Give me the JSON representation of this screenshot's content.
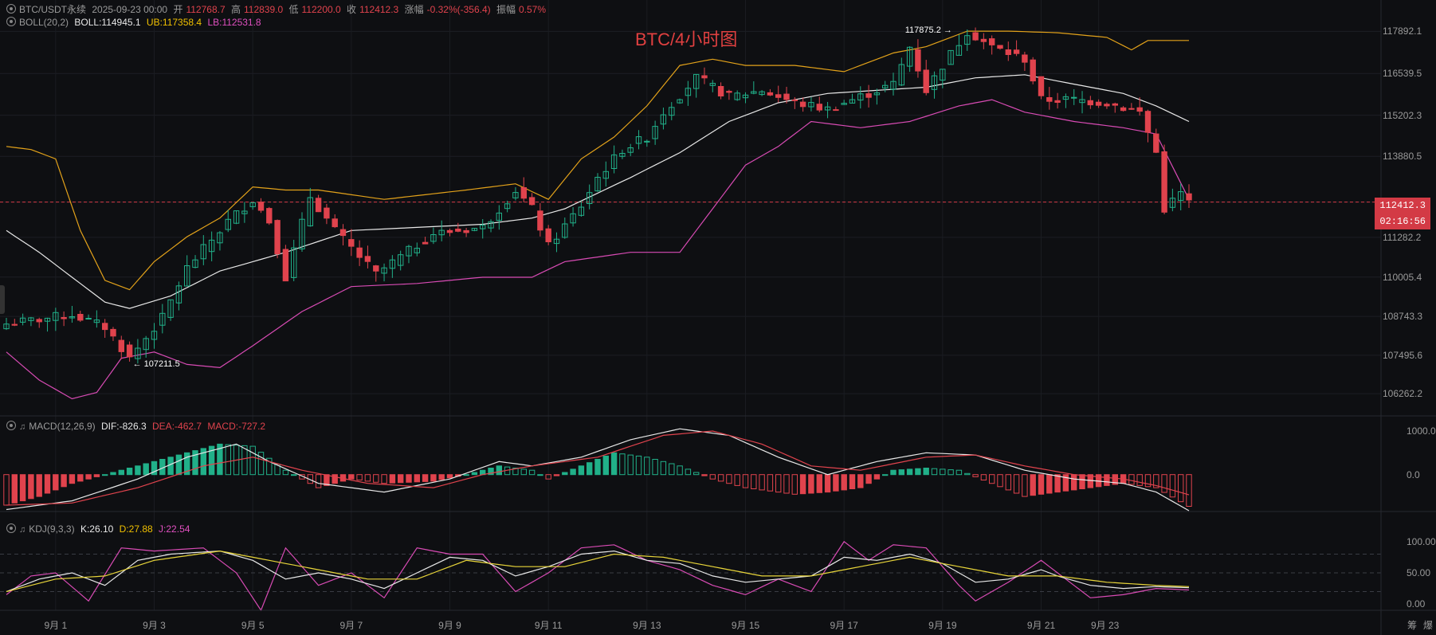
{
  "header": {
    "symbol": "BTC/USDT永续",
    "datetime": "2025-09-23 00:00",
    "open_label": "开",
    "open": "112768.7",
    "high_label": "高",
    "high": "112839.0",
    "low_label": "低",
    "low": "112200.0",
    "close_label": "收",
    "close": "112412.3",
    "change_label": "涨幅",
    "change": "-0.32%(-356.4)",
    "amp_label": "振幅",
    "amp": "0.57%"
  },
  "boll": {
    "name": "BOLL(20,2)",
    "mid": "BOLL:114945.1",
    "ub": "UB:117358.4",
    "lb": "LB:112531.8"
  },
  "macd": {
    "name": "MACD(12,26,9)",
    "dif": "DIF:-826.3",
    "dea": "DEA:-462.7",
    "macd": "MACD:-727.2"
  },
  "kdj": {
    "name": "KDJ(9,3,3)",
    "k": "K:26.10",
    "d": "D:27.88",
    "j": "J:22.54"
  },
  "chart_title": "BTC/4小时图",
  "last_price": "112412.3",
  "countdown": "02:16:56",
  "high_marker": "117875.2",
  "low_marker": "107211.5",
  "corner_buttons": [
    "筹",
    "爆"
  ],
  "colors": {
    "up": "#21b089",
    "down": "#e0434d",
    "mid": "#e8e8e8",
    "ub": "#e3a21a",
    "lb": "#d84bb4",
    "dif": "#e8e8e8",
    "dea": "#e0434d",
    "k": "#e8e8e8",
    "d": "#e8d53a",
    "j": "#d84bb4"
  },
  "chart_data": [
    {
      "type": "candlestick",
      "title": "BTC/4小时图",
      "x_ticks": [
        "9月 1",
        "9月 3",
        "9月 5",
        "9月 7",
        "9月 9",
        "9月 11",
        "9月 13",
        "9月 15",
        "9月 17",
        "9月 19",
        "9月 21",
        "9月 23"
      ],
      "y_ticks": [
        "117892.1",
        "116539.5",
        "115202.3",
        "113880.5",
        "112412.3",
        "111282.2",
        "110005.4",
        "108743.3",
        "107495.6",
        "106262.2"
      ],
      "y_tick_values": [
        117892.1,
        116539.5,
        115202.3,
        113880.5,
        112412.3,
        111282.2,
        110005.4,
        108743.3,
        107495.6,
        106262.2
      ],
      "ylim": [
        105600,
        118900
      ],
      "close_anchors": [
        [
          0,
          108500
        ],
        [
          8,
          108800
        ],
        [
          12,
          108400
        ],
        [
          15,
          107400
        ],
        [
          19,
          108700
        ],
        [
          22,
          110300
        ],
        [
          27,
          111800
        ],
        [
          30,
          112500
        ],
        [
          32,
          111800
        ],
        [
          34,
          110000
        ],
        [
          37,
          112600
        ],
        [
          40,
          111500
        ],
        [
          45,
          110100
        ],
        [
          52,
          111400
        ],
        [
          58,
          111600
        ],
        [
          62,
          112800
        ],
        [
          64,
          112200
        ],
        [
          66,
          111000
        ],
        [
          70,
          112300
        ],
        [
          72,
          113200
        ],
        [
          75,
          114100
        ],
        [
          78,
          114500
        ],
        [
          80,
          115300
        ],
        [
          84,
          116400
        ],
        [
          88,
          115800
        ],
        [
          92,
          116000
        ],
        [
          96,
          115600
        ],
        [
          100,
          115400
        ],
        [
          104,
          115800
        ],
        [
          108,
          116200
        ],
        [
          110,
          117400
        ],
        [
          112,
          116000
        ],
        [
          114,
          116800
        ],
        [
          117,
          117900
        ],
        [
          120,
          117400
        ],
        [
          124,
          117000
        ],
        [
          126,
          115700
        ],
        [
          130,
          115700
        ],
        [
          134,
          115600
        ],
        [
          138,
          115300
        ],
        [
          140,
          114000
        ],
        [
          141,
          112200
        ],
        [
          143,
          112700
        ],
        [
          144,
          112412.3
        ]
      ],
      "boll_ub_anchors": [
        [
          0,
          114200
        ],
        [
          3,
          114100
        ],
        [
          6,
          113800
        ],
        [
          9,
          111500
        ],
        [
          12,
          109900
        ],
        [
          15,
          109600
        ],
        [
          18,
          110500
        ],
        [
          22,
          111300
        ],
        [
          26,
          111900
        ],
        [
          30,
          112900
        ],
        [
          34,
          112800
        ],
        [
          38,
          112800
        ],
        [
          46,
          112500
        ],
        [
          56,
          112800
        ],
        [
          62,
          113000
        ],
        [
          66,
          112500
        ],
        [
          70,
          113800
        ],
        [
          74,
          114500
        ],
        [
          78,
          115500
        ],
        [
          82,
          116800
        ],
        [
          86,
          117000
        ],
        [
          90,
          116800
        ],
        [
          96,
          116800
        ],
        [
          102,
          116600
        ],
        [
          108,
          117200
        ],
        [
          112,
          117400
        ],
        [
          117,
          117900
        ],
        [
          122,
          117900
        ],
        [
          128,
          117850
        ],
        [
          134,
          117700
        ],
        [
          137,
          117300
        ],
        [
          139,
          117600
        ],
        [
          144,
          117600
        ]
      ],
      "boll_mid_anchors": [
        [
          0,
          111500
        ],
        [
          4,
          110800
        ],
        [
          8,
          110000
        ],
        [
          12,
          109200
        ],
        [
          15,
          109000
        ],
        [
          20,
          109400
        ],
        [
          26,
          110200
        ],
        [
          34,
          110800
        ],
        [
          42,
          111500
        ],
        [
          50,
          111600
        ],
        [
          58,
          111700
        ],
        [
          64,
          111900
        ],
        [
          68,
          112200
        ],
        [
          76,
          113200
        ],
        [
          82,
          114000
        ],
        [
          88,
          115000
        ],
        [
          94,
          115600
        ],
        [
          100,
          115900
        ],
        [
          106,
          116000
        ],
        [
          112,
          116100
        ],
        [
          118,
          116400
        ],
        [
          124,
          116500
        ],
        [
          130,
          116200
        ],
        [
          136,
          115900
        ],
        [
          140,
          115500
        ],
        [
          144,
          115000
        ]
      ],
      "boll_lb_anchors": [
        [
          0,
          107600
        ],
        [
          4,
          106700
        ],
        [
          8,
          106100
        ],
        [
          11,
          106300
        ],
        [
          14,
          107400
        ],
        [
          18,
          107600
        ],
        [
          22,
          107200
        ],
        [
          26,
          107100
        ],
        [
          30,
          107800
        ],
        [
          36,
          108900
        ],
        [
          42,
          109700
        ],
        [
          50,
          109800
        ],
        [
          58,
          110000
        ],
        [
          64,
          110000
        ],
        [
          68,
          110500
        ],
        [
          76,
          110800
        ],
        [
          82,
          110800
        ],
        [
          86,
          112200
        ],
        [
          90,
          113600
        ],
        [
          94,
          114200
        ],
        [
          98,
          115000
        ],
        [
          104,
          114800
        ],
        [
          110,
          115000
        ],
        [
          116,
          115500
        ],
        [
          120,
          115700
        ],
        [
          124,
          115300
        ],
        [
          130,
          115000
        ],
        [
          136,
          114800
        ],
        [
          140,
          114600
        ],
        [
          144,
          112500
        ]
      ],
      "high_marker": 117875.2,
      "low_marker": 107211.5
    },
    {
      "type": "bar+line",
      "title": "MACD(12,26,9)",
      "y_ticks": [
        "1000.0",
        "0.0"
      ],
      "y_tick_values": [
        1000,
        0
      ],
      "ylim": [
        -900,
        1200
      ],
      "hist_anchors": [
        [
          0,
          -700
        ],
        [
          4,
          -500
        ],
        [
          8,
          -200
        ],
        [
          12,
          0
        ],
        [
          16,
          200
        ],
        [
          20,
          400
        ],
        [
          26,
          700
        ],
        [
          30,
          650
        ],
        [
          34,
          100
        ],
        [
          38,
          -300
        ],
        [
          42,
          -100
        ],
        [
          46,
          -200
        ],
        [
          52,
          -150
        ],
        [
          56,
          0
        ],
        [
          60,
          200
        ],
        [
          64,
          100
        ],
        [
          66,
          -100
        ],
        [
          70,
          200
        ],
        [
          74,
          500
        ],
        [
          78,
          400
        ],
        [
          82,
          200
        ],
        [
          86,
          -100
        ],
        [
          90,
          -300
        ],
        [
          96,
          -450
        ],
        [
          100,
          -400
        ],
        [
          104,
          -300
        ],
        [
          108,
          100
        ],
        [
          112,
          150
        ],
        [
          116,
          100
        ],
        [
          120,
          -200
        ],
        [
          124,
          -500
        ],
        [
          128,
          -400
        ],
        [
          132,
          -300
        ],
        [
          136,
          -200
        ],
        [
          140,
          -300
        ],
        [
          144,
          -727.2
        ]
      ],
      "dif_anchors": [
        [
          0,
          -800
        ],
        [
          8,
          -600
        ],
        [
          16,
          -100
        ],
        [
          22,
          400
        ],
        [
          28,
          700
        ],
        [
          32,
          300
        ],
        [
          38,
          -200
        ],
        [
          46,
          -400
        ],
        [
          54,
          -100
        ],
        [
          60,
          300
        ],
        [
          64,
          200
        ],
        [
          70,
          400
        ],
        [
          76,
          800
        ],
        [
          82,
          1050
        ],
        [
          88,
          900
        ],
        [
          94,
          400
        ],
        [
          100,
          0
        ],
        [
          106,
          300
        ],
        [
          112,
          500
        ],
        [
          118,
          450
        ],
        [
          124,
          100
        ],
        [
          130,
          -100
        ],
        [
          136,
          -200
        ],
        [
          140,
          -400
        ],
        [
          144,
          -826.3
        ]
      ],
      "dea_anchors": [
        [
          0,
          -700
        ],
        [
          8,
          -650
        ],
        [
          16,
          -300
        ],
        [
          24,
          200
        ],
        [
          30,
          400
        ],
        [
          36,
          100
        ],
        [
          44,
          -200
        ],
        [
          52,
          -300
        ],
        [
          58,
          0
        ],
        [
          64,
          200
        ],
        [
          72,
          400
        ],
        [
          80,
          900
        ],
        [
          86,
          1000
        ],
        [
          92,
          700
        ],
        [
          98,
          200
        ],
        [
          104,
          100
        ],
        [
          112,
          400
        ],
        [
          118,
          450
        ],
        [
          124,
          200
        ],
        [
          130,
          0
        ],
        [
          136,
          -100
        ],
        [
          140,
          -250
        ],
        [
          144,
          -462.7
        ]
      ]
    },
    {
      "type": "line",
      "title": "KDJ(9,3,3)",
      "y_ticks": [
        "100.00",
        "50.00",
        "0.00"
      ],
      "y_tick_values": [
        100,
        50,
        0
      ],
      "ylim": [
        -10,
        110
      ],
      "k_anchors": [
        [
          0,
          20
        ],
        [
          4,
          40
        ],
        [
          8,
          50
        ],
        [
          12,
          30
        ],
        [
          16,
          70
        ],
        [
          20,
          80
        ],
        [
          26,
          85
        ],
        [
          30,
          70
        ],
        [
          34,
          40
        ],
        [
          38,
          50
        ],
        [
          42,
          40
        ],
        [
          46,
          25
        ],
        [
          50,
          50
        ],
        [
          54,
          75
        ],
        [
          58,
          70
        ],
        [
          62,
          45
        ],
        [
          66,
          60
        ],
        [
          70,
          80
        ],
        [
          74,
          85
        ],
        [
          78,
          70
        ],
        [
          82,
          65
        ],
        [
          86,
          45
        ],
        [
          90,
          35
        ],
        [
          94,
          40
        ],
        [
          98,
          45
        ],
        [
          102,
          75
        ],
        [
          106,
          70
        ],
        [
          110,
          80
        ],
        [
          114,
          65
        ],
        [
          118,
          35
        ],
        [
          122,
          40
        ],
        [
          126,
          55
        ],
        [
          128,
          45
        ],
        [
          132,
          30
        ],
        [
          136,
          25
        ],
        [
          140,
          28
        ],
        [
          144,
          26.1
        ]
      ],
      "d_anchors": [
        [
          0,
          20
        ],
        [
          6,
          40
        ],
        [
          12,
          45
        ],
        [
          18,
          70
        ],
        [
          26,
          85
        ],
        [
          32,
          70
        ],
        [
          38,
          55
        ],
        [
          44,
          40
        ],
        [
          50,
          40
        ],
        [
          56,
          70
        ],
        [
          62,
          60
        ],
        [
          68,
          60
        ],
        [
          74,
          80
        ],
        [
          80,
          75
        ],
        [
          86,
          60
        ],
        [
          92,
          45
        ],
        [
          98,
          45
        ],
        [
          104,
          60
        ],
        [
          110,
          75
        ],
        [
          116,
          60
        ],
        [
          122,
          45
        ],
        [
          128,
          45
        ],
        [
          134,
          35
        ],
        [
          140,
          30
        ],
        [
          144,
          27.88
        ]
      ],
      "j_anchors": [
        [
          0,
          15
        ],
        [
          3,
          45
        ],
        [
          6,
          50
        ],
        [
          10,
          5
        ],
        [
          14,
          90
        ],
        [
          18,
          85
        ],
        [
          24,
          90
        ],
        [
          28,
          50
        ],
        [
          31,
          -10
        ],
        [
          34,
          90
        ],
        [
          38,
          30
        ],
        [
          42,
          50
        ],
        [
          46,
          10
        ],
        [
          50,
          90
        ],
        [
          54,
          80
        ],
        [
          58,
          80
        ],
        [
          62,
          20
        ],
        [
          66,
          50
        ],
        [
          70,
          90
        ],
        [
          74,
          95
        ],
        [
          78,
          70
        ],
        [
          82,
          55
        ],
        [
          86,
          30
        ],
        [
          90,
          15
        ],
        [
          94,
          40
        ],
        [
          98,
          20
        ],
        [
          102,
          100
        ],
        [
          105,
          70
        ],
        [
          108,
          95
        ],
        [
          112,
          90
        ],
        [
          116,
          30
        ],
        [
          118,
          5
        ],
        [
          122,
          35
        ],
        [
          126,
          70
        ],
        [
          129,
          40
        ],
        [
          132,
          10
        ],
        [
          136,
          15
        ],
        [
          140,
          25
        ],
        [
          144,
          22.54
        ]
      ]
    }
  ]
}
